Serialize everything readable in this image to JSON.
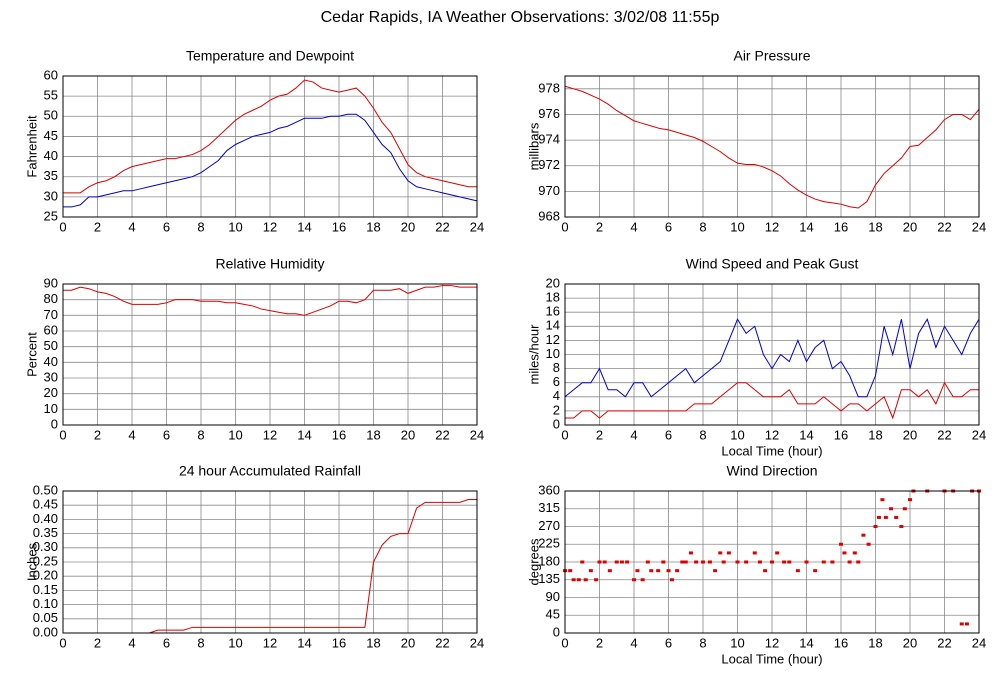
{
  "title": "Cedar Rapids, IA Weather Observations: 3/02/08 11:55p",
  "chart_data": [
    {
      "type": "line",
      "title": "Temperature and Dewpoint",
      "ylabel": "Fahrenheit",
      "x": [
        0,
        0.5,
        1,
        1.5,
        2,
        2.5,
        3,
        3.5,
        4,
        4.5,
        5,
        5.5,
        6,
        6.5,
        7,
        7.5,
        8,
        8.5,
        9,
        9.5,
        10,
        10.5,
        11,
        11.5,
        12,
        12.5,
        13,
        13.5,
        14,
        14.5,
        15,
        15.5,
        16,
        16.5,
        17,
        17.5,
        18,
        18.5,
        19,
        19.5,
        20,
        20.5,
        21,
        21.5,
        22,
        22.5,
        23,
        23.5,
        24
      ],
      "series": [
        {
          "color": "#dd0000",
          "values": [
            31,
            31,
            31,
            32.5,
            33.5,
            34,
            35,
            36.5,
            37.5,
            38,
            38.5,
            39,
            39.5,
            39.5,
            40,
            40.5,
            41.5,
            43,
            45,
            47,
            49,
            50.5,
            51.5,
            52.5,
            54,
            55,
            55.5,
            57,
            59,
            58.5,
            57,
            56.5,
            56,
            56.5,
            57,
            55,
            52,
            48.5,
            46,
            42,
            38,
            36,
            35,
            34.5,
            34,
            33.5,
            33,
            32.5,
            32.5
          ]
        },
        {
          "color": "#0000cc",
          "values": [
            27.5,
            27.5,
            28,
            30,
            30,
            30.5,
            31,
            31.5,
            31.5,
            32,
            32.5,
            33,
            33.5,
            34,
            34.5,
            35,
            36,
            37.5,
            39,
            41.5,
            43,
            44,
            45,
            45.5,
            46,
            47,
            47.5,
            48.5,
            49.5,
            49.5,
            49.5,
            50,
            50,
            50.5,
            50.5,
            49,
            46,
            43,
            41,
            37,
            34,
            32.5,
            32,
            31.5,
            31,
            30.5,
            30,
            29.5,
            29
          ]
        }
      ],
      "xlim": [
        0,
        24
      ],
      "xticks": [
        0,
        2,
        4,
        6,
        8,
        10,
        12,
        14,
        16,
        18,
        20,
        22,
        24
      ],
      "ylim": [
        25,
        60
      ],
      "yticks": [
        25,
        30,
        35,
        40,
        45,
        50,
        55,
        60
      ],
      "grid": true
    },
    {
      "type": "line",
      "title": "Air Pressure",
      "ylabel": "millibars",
      "x": [
        0,
        0.5,
        1,
        1.5,
        2,
        2.5,
        3,
        3.5,
        4,
        4.5,
        5,
        5.5,
        6,
        6.5,
        7,
        7.5,
        8,
        8.5,
        9,
        9.5,
        10,
        10.5,
        11,
        11.5,
        12,
        12.5,
        13,
        13.5,
        14,
        14.5,
        15,
        15.5,
        16,
        16.5,
        17,
        17.5,
        18,
        18.5,
        19,
        19.5,
        20,
        20.5,
        21,
        21.5,
        22,
        22.5,
        23,
        23.5,
        24
      ],
      "series": [
        {
          "color": "#dd0000",
          "values": [
            978.2,
            978,
            977.8,
            977.5,
            977.2,
            976.8,
            976.3,
            975.9,
            975.5,
            975.3,
            975.1,
            974.9,
            974.8,
            974.6,
            974.4,
            974.2,
            973.9,
            973.5,
            973.1,
            972.6,
            972.2,
            972.1,
            972.1,
            971.9,
            971.6,
            971.2,
            970.6,
            970.1,
            969.7,
            969.4,
            969.2,
            969.1,
            969,
            968.8,
            968.7,
            969.2,
            970.5,
            971.4,
            972,
            972.6,
            973.5,
            973.6,
            974.2,
            974.8,
            975.6,
            976,
            976,
            975.6,
            976.4
          ]
        }
      ],
      "xlim": [
        0,
        24
      ],
      "xticks": [
        0,
        2,
        4,
        6,
        8,
        10,
        12,
        14,
        16,
        18,
        20,
        22,
        24
      ],
      "ylim": [
        968,
        979
      ],
      "yticks": [
        968,
        970,
        972,
        974,
        976,
        978
      ],
      "grid": true
    },
    {
      "type": "line",
      "title": "Relative Humidity",
      "ylabel": "Percent",
      "x": [
        0,
        0.5,
        1,
        1.5,
        2,
        2.5,
        3,
        3.5,
        4,
        4.5,
        5,
        5.5,
        6,
        6.5,
        7,
        7.5,
        8,
        8.5,
        9,
        9.5,
        10,
        10.5,
        11,
        11.5,
        12,
        12.5,
        13,
        13.5,
        14,
        14.5,
        15,
        15.5,
        16,
        16.5,
        17,
        17.5,
        18,
        18.5,
        19,
        19.5,
        20,
        20.5,
        21,
        21.5,
        22,
        22.5,
        23,
        23.5,
        24
      ],
      "series": [
        {
          "color": "#dd0000",
          "values": [
            86,
            86,
            88,
            87,
            85,
            84,
            82,
            79,
            77,
            77,
            77,
            77,
            78,
            80,
            80,
            80,
            79,
            79,
            79,
            78,
            78,
            77,
            76,
            74,
            73,
            72,
            71,
            71,
            70,
            72,
            74,
            76,
            79,
            79,
            78,
            80,
            86,
            86,
            86,
            87,
            84,
            86,
            88,
            88,
            89,
            89,
            88,
            88,
            88
          ]
        }
      ],
      "xlim": [
        0,
        24
      ],
      "xticks": [
        0,
        2,
        4,
        6,
        8,
        10,
        12,
        14,
        16,
        18,
        20,
        22,
        24
      ],
      "ylim": [
        0,
        90
      ],
      "yticks": [
        0,
        10,
        20,
        30,
        40,
        50,
        60,
        70,
        80,
        90
      ],
      "grid": true
    },
    {
      "type": "line",
      "title": "Wind Speed and Peak Gust",
      "ylabel": "miles/hour",
      "xlabel": "Local Time (hour)",
      "x": [
        0,
        0.5,
        1,
        1.5,
        2,
        2.5,
        3,
        3.5,
        4,
        4.5,
        5,
        5.5,
        6,
        6.5,
        7,
        7.5,
        8,
        8.5,
        9,
        9.5,
        10,
        10.5,
        11,
        11.5,
        12,
        12.5,
        13,
        13.5,
        14,
        14.5,
        15,
        15.5,
        16,
        16.5,
        17,
        17.5,
        18,
        18.5,
        19,
        19.5,
        20,
        20.5,
        21,
        21.5,
        22,
        22.5,
        23,
        23.5,
        24
      ],
      "series": [
        {
          "color": "#0000cc",
          "values": [
            4,
            5,
            6,
            6,
            8,
            5,
            5,
            4,
            6,
            6,
            4,
            5,
            6,
            7,
            8,
            6,
            7,
            8,
            9,
            12,
            15,
            13,
            14,
            10,
            8,
            10,
            9,
            12,
            9,
            11,
            12,
            8,
            9,
            7,
            4,
            4,
            7,
            14,
            10,
            15,
            8,
            13,
            15,
            11,
            14,
            12,
            10,
            13,
            15
          ]
        },
        {
          "color": "#dd0000",
          "values": [
            1,
            1,
            2,
            2,
            1,
            2,
            2,
            2,
            2,
            2,
            2,
            2,
            2,
            2,
            2,
            3,
            3,
            3,
            4,
            5,
            6,
            6,
            5,
            4,
            4,
            4,
            5,
            3,
            3,
            3,
            4,
            3,
            2,
            3,
            3,
            2,
            3,
            4,
            1,
            5,
            5,
            4,
            5,
            3,
            6,
            4,
            4,
            5,
            5
          ]
        }
      ],
      "xlim": [
        0,
        24
      ],
      "xticks": [
        0,
        2,
        4,
        6,
        8,
        10,
        12,
        14,
        16,
        18,
        20,
        22,
        24
      ],
      "ylim": [
        0,
        20
      ],
      "yticks": [
        0,
        2,
        4,
        6,
        8,
        10,
        12,
        14,
        16,
        18,
        20
      ],
      "grid": true
    },
    {
      "type": "line",
      "title": "24 hour Accumulated Rainfall",
      "ylabel": "Inches",
      "x": [
        0,
        0.5,
        1,
        1.5,
        2,
        2.5,
        3,
        3.5,
        4,
        4.5,
        5,
        5.5,
        6,
        6.5,
        7,
        7.5,
        8,
        8.5,
        9,
        9.5,
        10,
        10.5,
        11,
        11.5,
        12,
        12.5,
        13,
        13.5,
        14,
        14.5,
        15,
        15.5,
        16,
        16.5,
        17,
        17.5,
        18,
        18.5,
        19,
        19.5,
        20,
        20.5,
        21,
        21.5,
        22,
        22.5,
        23,
        23.5,
        24
      ],
      "series": [
        {
          "color": "#dd0000",
          "values": [
            0,
            0,
            0,
            0,
            0,
            0,
            0,
            0,
            0,
            0,
            0,
            0.01,
            0.01,
            0.01,
            0.01,
            0.02,
            0.02,
            0.02,
            0.02,
            0.02,
            0.02,
            0.02,
            0.02,
            0.02,
            0.02,
            0.02,
            0.02,
            0.02,
            0.02,
            0.02,
            0.02,
            0.02,
            0.02,
            0.02,
            0.02,
            0.02,
            0.25,
            0.31,
            0.34,
            0.35,
            0.35,
            0.44,
            0.46,
            0.46,
            0.46,
            0.46,
            0.46,
            0.47,
            0.47
          ]
        }
      ],
      "xlim": [
        0,
        24
      ],
      "xticks": [
        0,
        2,
        4,
        6,
        8,
        10,
        12,
        14,
        16,
        18,
        20,
        22,
        24
      ],
      "ylim": [
        0,
        0.5
      ],
      "yticks": [
        {
          "value": 0,
          "label": "0.00"
        },
        {
          "value": 0.05,
          "label": "0.05"
        },
        {
          "value": 0.1,
          "label": "0.10"
        },
        {
          "value": 0.15,
          "label": "0.15"
        },
        {
          "value": 0.2,
          "label": "0.20"
        },
        {
          "value": 0.25,
          "label": "0.25"
        },
        {
          "value": 0.3,
          "label": "0.30"
        },
        {
          "value": 0.35,
          "label": "0.35"
        },
        {
          "value": 0.4,
          "label": "0.40"
        },
        {
          "value": 0.45,
          "label": "0.45"
        },
        {
          "value": 0.5,
          "label": "0.50"
        }
      ],
      "grid": true
    },
    {
      "type": "scatter",
      "title": "Wind Direction",
      "ylabel": "degrees",
      "xlabel": "Local Time (hour)",
      "x": [
        0,
        0.3,
        0.5,
        0.8,
        1,
        1.2,
        1.5,
        1.8,
        2,
        2.3,
        2.6,
        3,
        3.3,
        3.6,
        4,
        4.2,
        4.5,
        4.8,
        5,
        5.4,
        5.7,
        6,
        6.2,
        6.5,
        6.8,
        7,
        7.3,
        7.6,
        8,
        8.4,
        8.7,
        9,
        9.2,
        9.5,
        10,
        10.5,
        11,
        11.3,
        11.6,
        12,
        12.3,
        12.7,
        13,
        13.5,
        14,
        14.5,
        15,
        15.5,
        16,
        16.2,
        16.5,
        16.8,
        17,
        17.3,
        17.6,
        18,
        18.2,
        18.4,
        18.6,
        18.9,
        19.2,
        19.5,
        19.7,
        20,
        20.2,
        21,
        22,
        22.5,
        23,
        23.3,
        23.6,
        24
      ],
      "series": [
        {
          "color": "#dd0000",
          "values": [
            158,
            158,
            135,
            135,
            180,
            135,
            158,
            135,
            180,
            180,
            158,
            180,
            180,
            180,
            135,
            158,
            135,
            180,
            158,
            158,
            180,
            158,
            135,
            158,
            180,
            180,
            203,
            180,
            180,
            180,
            158,
            203,
            180,
            203,
            180,
            180,
            203,
            180,
            158,
            180,
            203,
            180,
            180,
            158,
            180,
            158,
            180,
            180,
            225,
            203,
            180,
            203,
            180,
            248,
            225,
            270,
            293,
            338,
            293,
            315,
            293,
            270,
            315,
            338,
            360,
            360,
            360,
            360,
            23,
            23,
            360,
            360
          ]
        }
      ],
      "xlim": [
        0,
        24
      ],
      "xticks": [
        0,
        2,
        4,
        6,
        8,
        10,
        12,
        14,
        16,
        18,
        20,
        22,
        24
      ],
      "ylim": [
        0,
        360
      ],
      "yticks": [
        0,
        45,
        90,
        135,
        180,
        225,
        270,
        315,
        360
      ],
      "grid": true
    }
  ]
}
